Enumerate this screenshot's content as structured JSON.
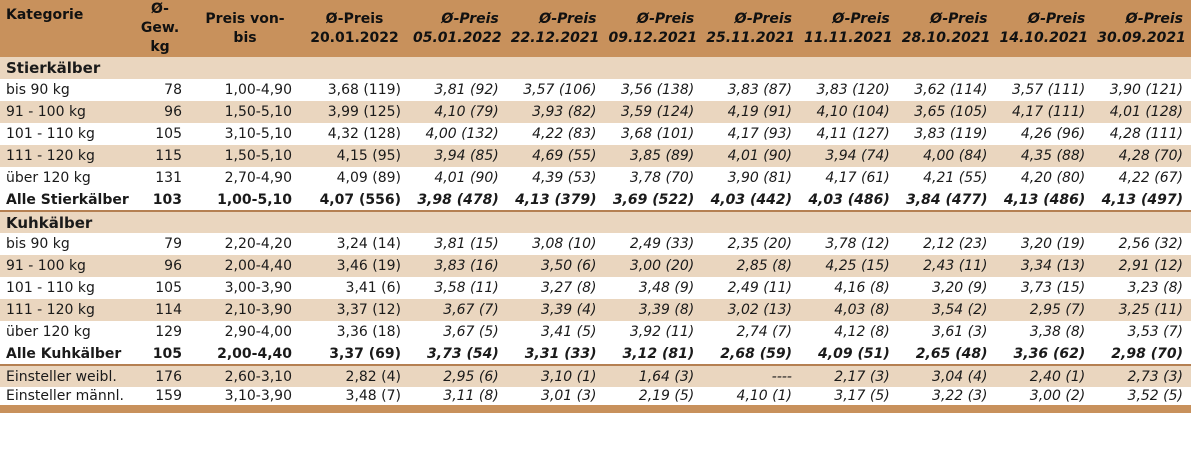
{
  "header": {
    "kategorie": "Kategorie",
    "gewicht": "Ø-Gew. kg",
    "preis_range": "Preis von-bis",
    "columns": [
      {
        "label": "Ø-Preis",
        "date": "20.01.2022"
      },
      {
        "label": "Ø-Preis",
        "date": "05.01.2022"
      },
      {
        "label": "Ø-Preis",
        "date": "22.12.2021"
      },
      {
        "label": "Ø-Preis",
        "date": "09.12.2021"
      },
      {
        "label": "Ø-Preis",
        "date": "25.11.2021"
      },
      {
        "label": "Ø-Preis",
        "date": "11.11.2021"
      },
      {
        "label": "Ø-Preis",
        "date": "28.10.2021"
      },
      {
        "label": "Ø-Preis",
        "date": "14.10.2021"
      },
      {
        "label": "Ø-Preis",
        "date": "30.09.2021"
      }
    ]
  },
  "sections": [
    {
      "title": "Stierkälber",
      "rows": [
        {
          "cat": "bis 90 kg",
          "kg": "78",
          "range": "1,00-4,90",
          "vals": [
            "3,68 (119)",
            "3,81 (92)",
            "3,57 (106)",
            "3,56 (138)",
            "3,83 (87)",
            "3,83 (120)",
            "3,62 (114)",
            "3,57 (111)",
            "3,90 (121)"
          ]
        },
        {
          "cat": "91 - 100 kg",
          "kg": "96",
          "range": "1,50-5,10",
          "vals": [
            "3,99 (125)",
            "4,10 (79)",
            "3,93 (82)",
            "3,59 (124)",
            "4,19 (91)",
            "4,10 (104)",
            "3,65 (105)",
            "4,17 (111)",
            "4,01 (128)"
          ]
        },
        {
          "cat": "101 - 110 kg",
          "kg": "105",
          "range": "3,10-5,10",
          "vals": [
            "4,32 (128)",
            "4,00 (132)",
            "4,22 (83)",
            "3,68 (101)",
            "4,17 (93)",
            "4,11 (127)",
            "3,83 (119)",
            "4,26 (96)",
            "4,28 (111)"
          ]
        },
        {
          "cat": "111 - 120 kg",
          "kg": "115",
          "range": "1,50-5,10",
          "vals": [
            "4,15 (95)",
            "3,94 (85)",
            "4,69 (55)",
            "3,85 (89)",
            "4,01 (90)",
            "3,94 (74)",
            "4,00 (84)",
            "4,35 (88)",
            "4,28 (70)"
          ]
        },
        {
          "cat": "über 120 kg",
          "kg": "131",
          "range": "2,70-4,90",
          "vals": [
            "4,09 (89)",
            "4,01 (90)",
            "4,39 (53)",
            "3,78 (70)",
            "3,90 (81)",
            "4,17 (61)",
            "4,21 (55)",
            "4,20 (80)",
            "4,22 (67)"
          ]
        }
      ],
      "total": {
        "cat": "Alle Stierkälber",
        "kg": "103",
        "range": "1,00-5,10",
        "vals": [
          "4,07 (556)",
          "3,98 (478)",
          "4,13 (379)",
          "3,69 (522)",
          "4,03 (442)",
          "4,03 (486)",
          "3,84 (477)",
          "4,13 (486)",
          "4,13 (497)"
        ]
      }
    },
    {
      "title": "Kuhkälber",
      "rows": [
        {
          "cat": "bis 90 kg",
          "kg": "79",
          "range": "2,20-4,20",
          "vals": [
            "3,24 (14)",
            "3,81 (15)",
            "3,08 (10)",
            "2,49 (33)",
            "2,35 (20)",
            "3,78 (12)",
            "2,12 (23)",
            "3,20 (19)",
            "2,56 (32)"
          ]
        },
        {
          "cat": "91 - 100 kg",
          "kg": "96",
          "range": "2,00-4,40",
          "vals": [
            "3,46 (19)",
            "3,83 (16)",
            "3,50 (6)",
            "3,00 (20)",
            "2,85 (8)",
            "4,25 (15)",
            "2,43 (11)",
            "3,34 (13)",
            "2,91 (12)"
          ]
        },
        {
          "cat": "101 - 110 kg",
          "kg": "105",
          "range": "3,00-3,90",
          "vals": [
            "3,41 (6)",
            "3,58 (11)",
            "3,27 (8)",
            "3,48 (9)",
            "2,49 (11)",
            "4,16 (8)",
            "3,20 (9)",
            "3,73 (15)",
            "3,23 (8)"
          ]
        },
        {
          "cat": "111 - 120 kg",
          "kg": "114",
          "range": "2,10-3,90",
          "vals": [
            "3,37 (12)",
            "3,67 (7)",
            "3,39 (4)",
            "3,39 (8)",
            "3,02 (13)",
            "4,03 (8)",
            "3,54 (2)",
            "2,95 (7)",
            "3,25 (11)"
          ]
        },
        {
          "cat": "über 120 kg",
          "kg": "129",
          "range": "2,90-4,00",
          "vals": [
            "3,36 (18)",
            "3,67 (5)",
            "3,41 (5)",
            "3,92 (11)",
            "2,74 (7)",
            "4,12 (8)",
            "3,61 (3)",
            "3,38 (8)",
            "3,53 (7)"
          ]
        }
      ],
      "total": {
        "cat": "Alle Kuhkälber",
        "kg": "105",
        "range": "2,00-4,40",
        "vals": [
          "3,37 (69)",
          "3,73 (54)",
          "3,31 (33)",
          "3,12 (81)",
          "2,68 (59)",
          "4,09 (51)",
          "2,65 (48)",
          "3,36 (62)",
          "2,98 (70)"
        ]
      }
    }
  ],
  "einsteller": [
    {
      "cat": "Einsteller weibl.",
      "kg": "176",
      "range": "2,60-3,10",
      "vals": [
        "2,82 (4)",
        "2,95 (6)",
        "3,10 (1)",
        "1,64 (3)",
        "----",
        "2,17 (3)",
        "3,04 (4)",
        "2,40 (1)",
        "2,73 (3)"
      ]
    },
    {
      "cat": "Einsteller männl.",
      "kg": "159",
      "range": "3,10-3,90",
      "vals": [
        "3,48 (7)",
        "3,11 (8)",
        "3,01 (3)",
        "2,19 (5)",
        "4,10 (1)",
        "3,17 (5)",
        "3,22 (3)",
        "3,00 (2)",
        "3,52 (5)"
      ]
    }
  ],
  "colors": {
    "header_bg": "#c8915c",
    "band_bg": "#ead6bf",
    "rule": "#b58052"
  }
}
